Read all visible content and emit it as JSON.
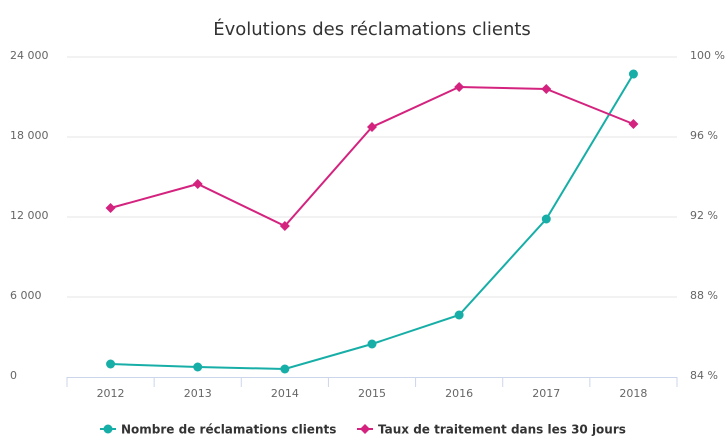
{
  "chart_data": {
    "type": "line",
    "title": "Évolutions des réclamations clients",
    "categories": [
      "2012",
      "2013",
      "2014",
      "2015",
      "2016",
      "2017",
      "2018"
    ],
    "series": [
      {
        "name": "Nombre de réclamations clients",
        "color": "#17aea7",
        "values": [
          975,
          750,
          600,
          2475,
          4650,
          11850,
          22725
        ]
      },
      {
        "name": "Taux de traitement dans les 30 jours",
        "color": "#d4237f",
        "axis": "y2",
        "values": [
          92.45,
          93.65,
          91.55,
          96.5,
          98.5,
          98.4,
          96.65
        ]
      }
    ],
    "ylim": [
      0,
      24000
    ],
    "yticks": [
      0,
      {
        "value": 6000,
        "label": "6 000"
      },
      {
        "value": 12000,
        "label": "12 000"
      },
      {
        "value": 18000,
        "label": "18 000"
      },
      {
        "value": 24000,
        "label": "24 000"
      }
    ],
    "y2lim": [
      84,
      100
    ],
    "y2ticks": [
      {
        "value": 84,
        "label": "84 %"
      },
      {
        "value": 88,
        "label": "88 %"
      },
      {
        "value": 92,
        "label": "92 %"
      },
      {
        "value": 96,
        "label": "96 %"
      },
      {
        "value": 100,
        "label": "100 %"
      }
    ],
    "grid": true,
    "legend": "bottom"
  }
}
